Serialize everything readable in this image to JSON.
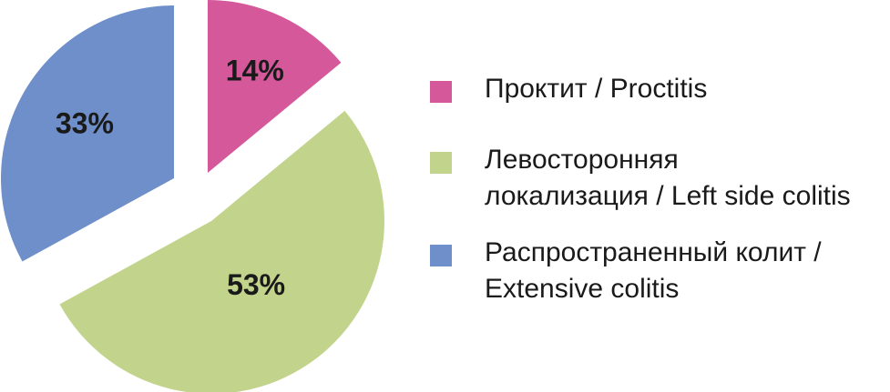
{
  "chart_data": {
    "type": "pie",
    "start": "top",
    "direction": "clockwise",
    "exploded": true,
    "legend_position": "right",
    "slices": [
      {
        "label": "Проктит / Proctitis",
        "value": 14,
        "value_label": "14%",
        "color": "#d4589a"
      },
      {
        "label": "Левосторонняя\nлокализация / Left side colitis",
        "value": 53,
        "value_label": "53%",
        "color": "#c2d48c"
      },
      {
        "label": "Распространенный колит /\nExtensive colitis",
        "value": 33,
        "value_label": "33%",
        "color": "#6f8fcb"
      }
    ]
  }
}
